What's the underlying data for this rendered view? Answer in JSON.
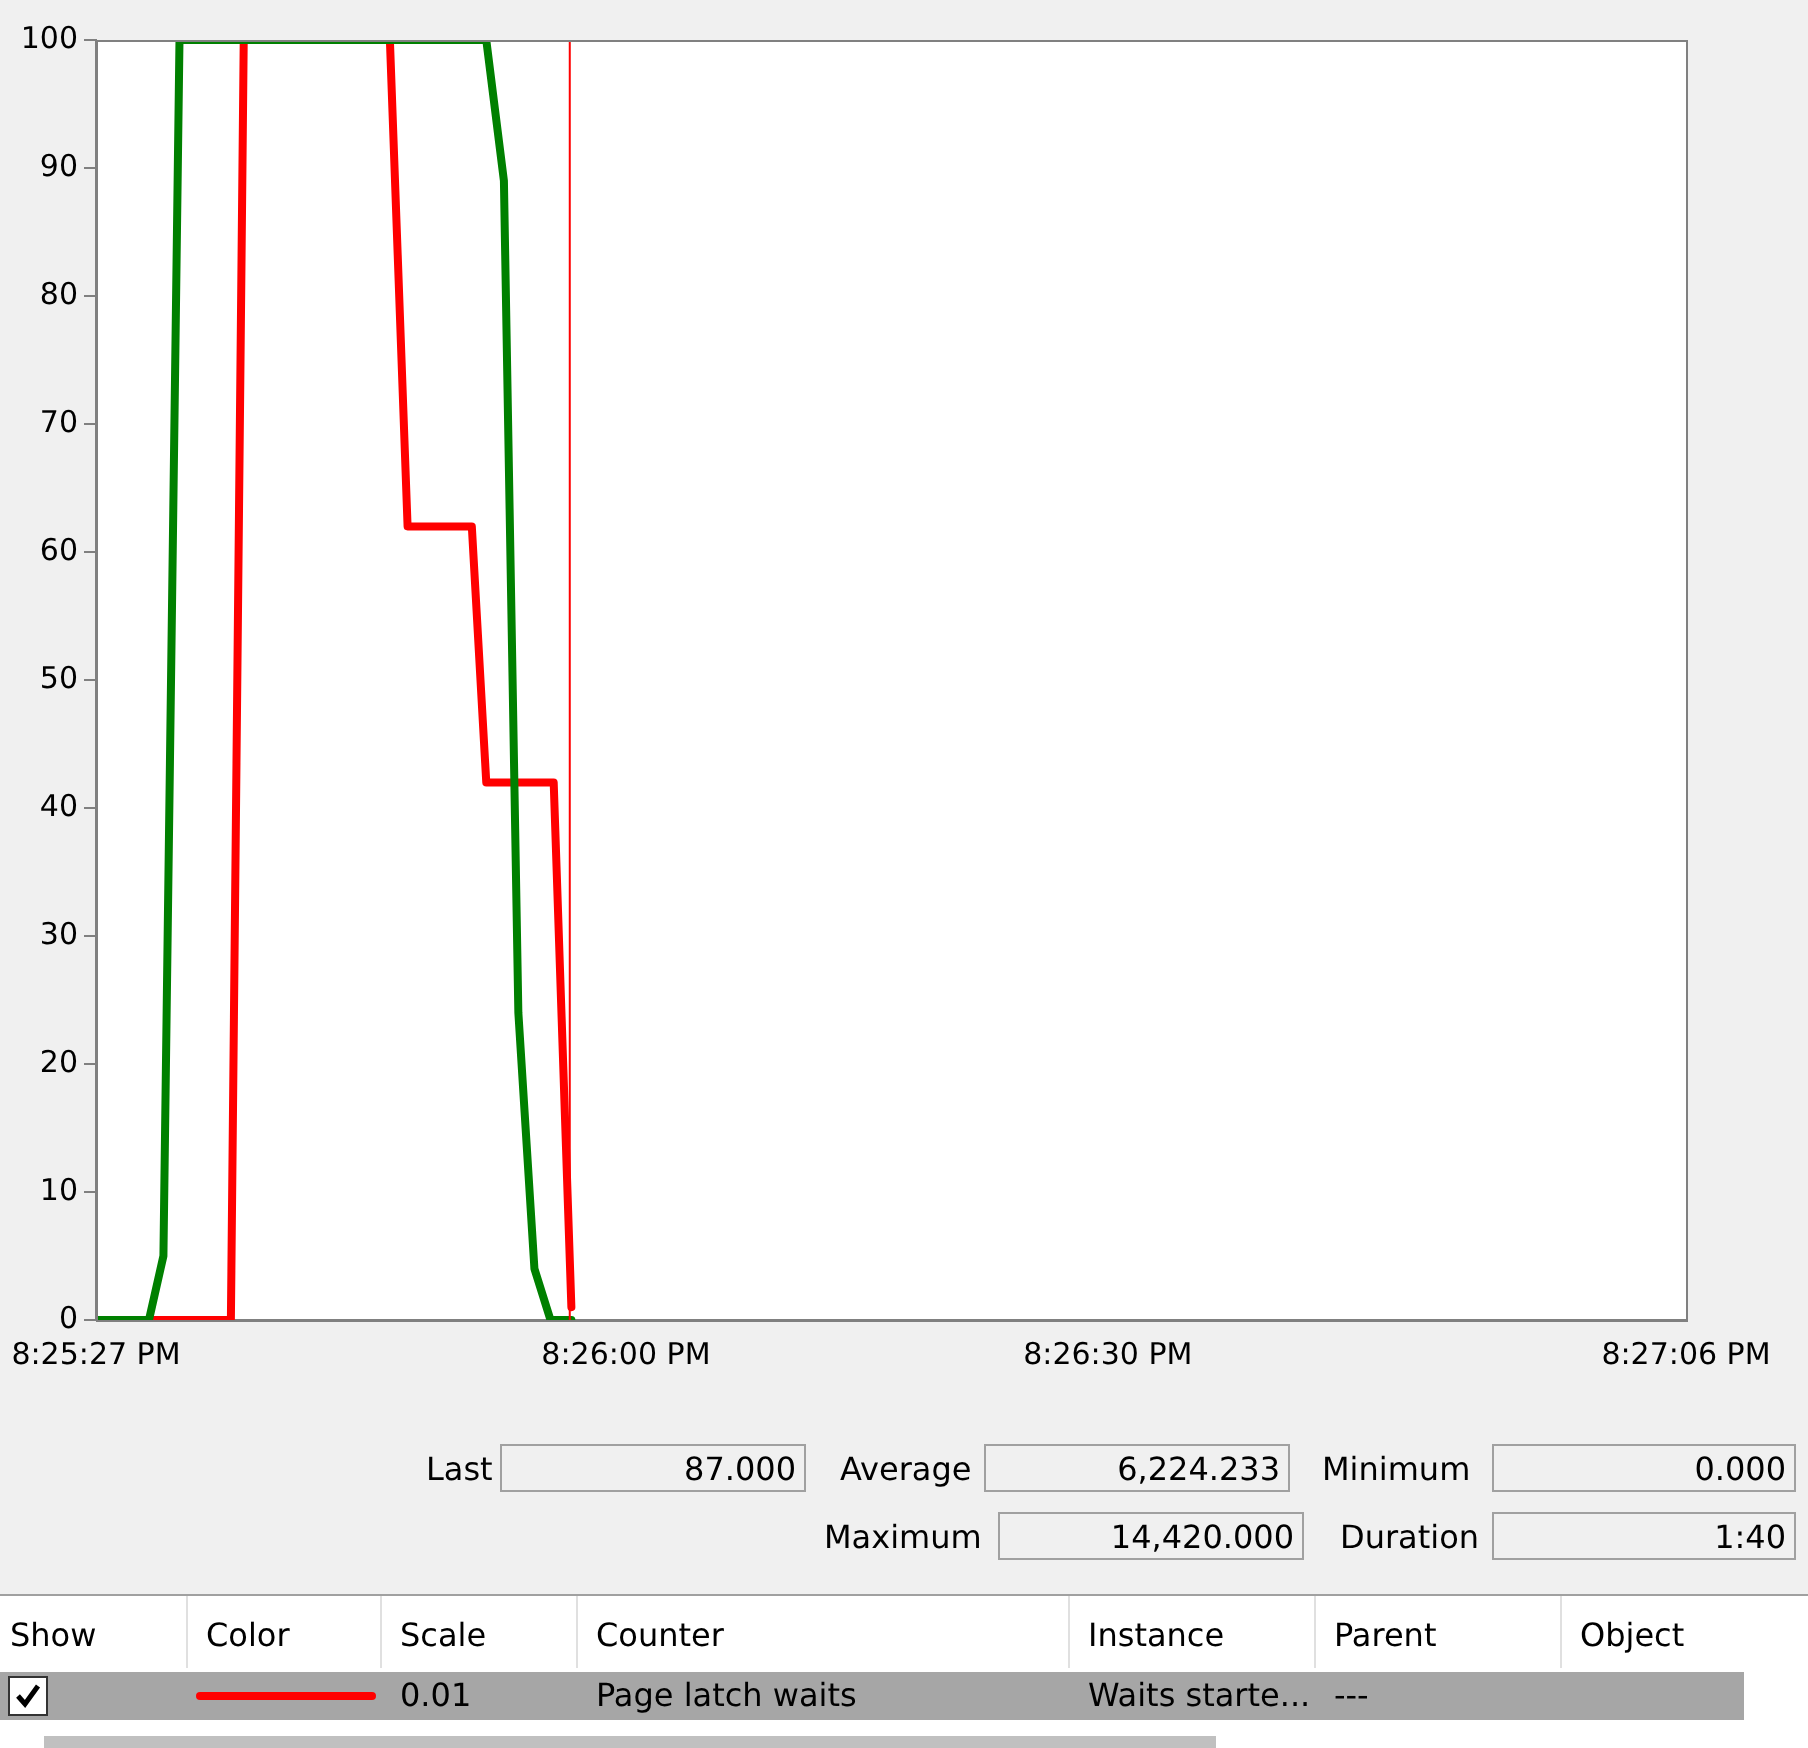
{
  "chart_data": {
    "type": "line",
    "xlim": [
      20.424167,
      20.451667
    ],
    "xticks": [
      {
        "value": 20.424167,
        "label": "8:25:27 PM"
      },
      {
        "value": 20.433333,
        "label": "8:26:00 PM"
      },
      {
        "value": 20.441667,
        "label": "8:26:30 PM"
      },
      {
        "value": 20.451667,
        "label": "8:27:06 PM"
      }
    ],
    "ylim": [
      0,
      100
    ],
    "yticks": [
      0,
      10,
      20,
      30,
      40,
      50,
      60,
      70,
      80,
      90,
      100
    ],
    "grid": false,
    "legend": "bottom",
    "marker": "none",
    "line_style": "solid",
    "series": [
      {
        "color": "#008000",
        "x": [
          20.424167,
          20.425083,
          20.425333,
          20.425611,
          20.430917,
          20.431222,
          20.431472,
          20.43175,
          20.432028,
          20.432389
        ],
        "values": [
          0,
          0,
          5,
          100,
          100,
          89,
          24,
          4,
          0,
          0
        ]
      },
      {
        "name": "Page latch waits",
        "color": "#ff0000",
        "x": [
          20.424167,
          20.4265,
          20.426722,
          20.42925,
          20.429556,
          20.430667,
          20.430917,
          20.432083,
          20.432389
        ],
        "values": [
          0,
          0,
          100,
          100,
          62,
          62,
          42,
          42,
          1
        ]
      }
    ],
    "ref_lines": [
      {
        "axis": "x",
        "value": 20.432361,
        "color": "#ff0000"
      }
    ],
    "annotations": [
      "Last",
      "87.000",
      "Average",
      "6,224.233",
      "Minimum",
      "0.000",
      "Maximum",
      "14,420.000",
      "Duration",
      "1:40",
      "Show",
      "Color",
      "Scale",
      "Counter",
      "Instance",
      "Parent",
      "Object",
      "0.01",
      "Waits starte...",
      "---"
    ]
  }
}
